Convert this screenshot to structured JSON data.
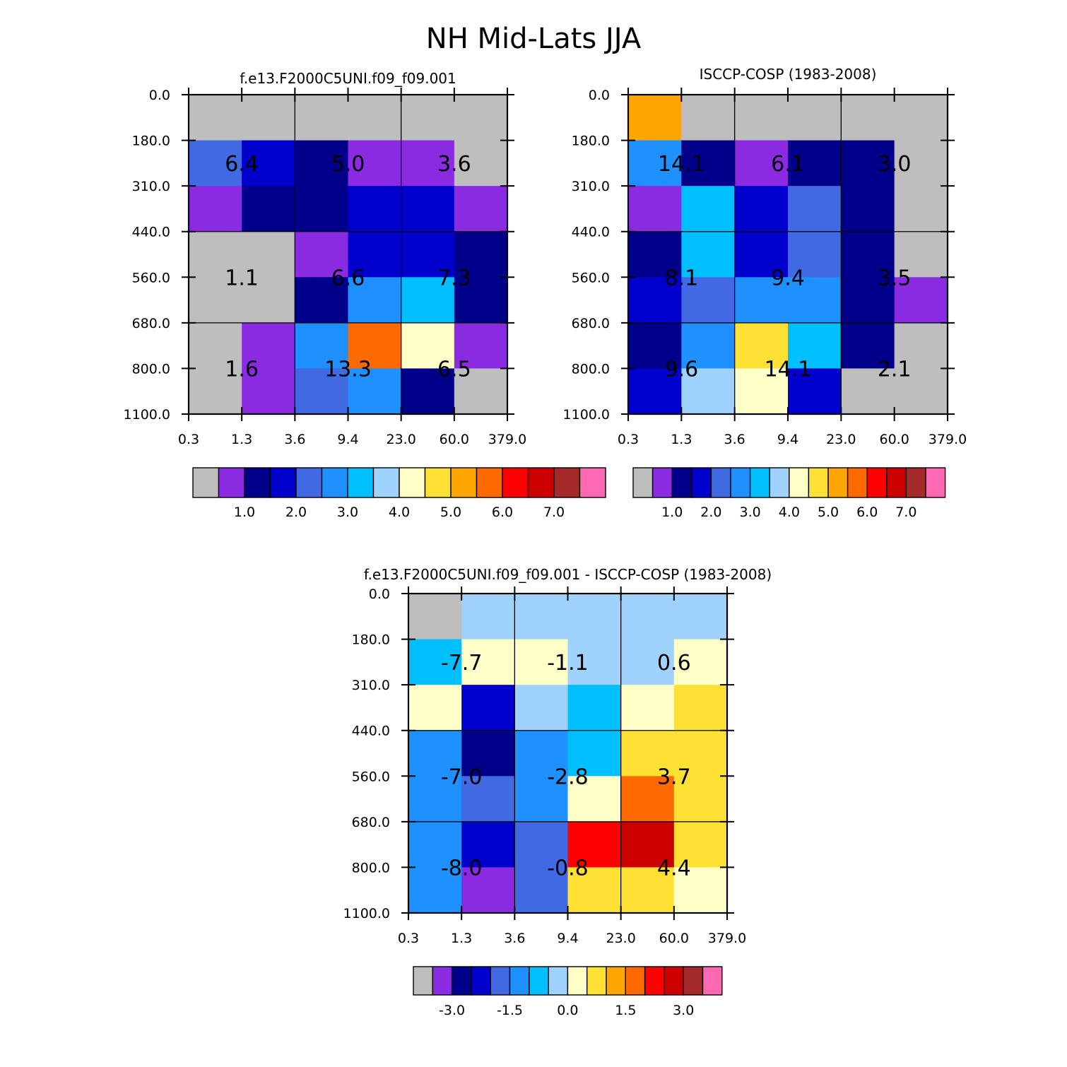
{
  "figure": {
    "title": "NH Mid-Lats JJA"
  },
  "chart_data": [
    {
      "type": "heatmap",
      "title": "f.e13.F2000C5UNI.f09_f09.001",
      "x_tick_labels": [
        "0.3",
        "1.3",
        "3.6",
        "9.4",
        "23.0",
        "60.0",
        "379.0"
      ],
      "y_tick_labels": [
        "0.0",
        "180.0",
        "310.0",
        "440.0",
        "560.0",
        "680.0",
        "800.0",
        "1100.0"
      ],
      "cell_colors": [
        [
          "#BEBEBE",
          "#BEBEBE",
          "#BEBEBE",
          "#BEBEBE",
          "#BEBEBE",
          "#BEBEBE"
        ],
        [
          "#4169E1",
          "#0000CD",
          "#00008B",
          "#8A2BE2",
          "#8A2BE2",
          "#BEBEBE"
        ],
        [
          "#8A2BE2",
          "#00008B",
          "#00008B",
          "#0000CD",
          "#0000CD",
          "#8A2BE2"
        ],
        [
          "#BEBEBE",
          "#BEBEBE",
          "#8A2BE2",
          "#0000CD",
          "#0000CD",
          "#00008B"
        ],
        [
          "#BEBEBE",
          "#BEBEBE",
          "#00008B",
          "#1E90FF",
          "#00BFFF",
          "#00008B"
        ],
        [
          "#BEBEBE",
          "#8A2BE2",
          "#1E90FF",
          "#FF6A00",
          "#FFFFC8",
          "#8A2BE2"
        ],
        [
          "#BEBEBE",
          "#8A2BE2",
          "#4169E1",
          "#1E90FF",
          "#00008B",
          "#BEBEBE"
        ]
      ],
      "group_values": [
        [
          "6.4",
          "5.0",
          "3.6"
        ],
        [
          "1.1",
          "6.6",
          "7.3"
        ],
        [
          "1.6",
          "13.3",
          "6.5"
        ]
      ],
      "colorbar": {
        "colors": [
          "#BEBEBE",
          "#8A2BE2",
          "#00008B",
          "#0000CD",
          "#4169E1",
          "#1E90FF",
          "#00BFFF",
          "#A0D2FF",
          "#FFFFC8",
          "#FFE135",
          "#FFA500",
          "#FF6A00",
          "#FF0000",
          "#CD0000",
          "#A52A2A",
          "#FF69B4"
        ],
        "labels": [
          "1.0",
          "2.0",
          "3.0",
          "4.0",
          "5.0",
          "6.0",
          "7.0"
        ]
      }
    },
    {
      "type": "heatmap",
      "title": "ISCCP-COSP (1983-2008)",
      "x_tick_labels": [
        "0.3",
        "1.3",
        "3.6",
        "9.4",
        "23.0",
        "60.0",
        "379.0"
      ],
      "y_tick_labels": [
        "0.0",
        "180.0",
        "310.0",
        "440.0",
        "560.0",
        "680.0",
        "800.0",
        "1100.0"
      ],
      "cell_colors": [
        [
          "#FFA500",
          "#BEBEBE",
          "#BEBEBE",
          "#BEBEBE",
          "#BEBEBE",
          "#BEBEBE"
        ],
        [
          "#1E90FF",
          "#00008B",
          "#8A2BE2",
          "#00008B",
          "#00008B",
          "#BEBEBE"
        ],
        [
          "#8A2BE2",
          "#00BFFF",
          "#0000CD",
          "#4169E1",
          "#00008B",
          "#BEBEBE"
        ],
        [
          "#00008B",
          "#00BFFF",
          "#0000CD",
          "#4169E1",
          "#00008B",
          "#BEBEBE"
        ],
        [
          "#0000CD",
          "#4169E1",
          "#1E90FF",
          "#1E90FF",
          "#00008B",
          "#8A2BE2"
        ],
        [
          "#00008B",
          "#1E90FF",
          "#FFE135",
          "#00BFFF",
          "#00008B",
          "#BEBEBE"
        ],
        [
          "#0000CD",
          "#A0D2FF",
          "#FFFFC8",
          "#0000CD",
          "#BEBEBE",
          "#BEBEBE"
        ]
      ],
      "group_values": [
        [
          "14.1",
          "6.1",
          "3.0"
        ],
        [
          "8.1",
          "9.4",
          "3.5"
        ],
        [
          "9.6",
          "14.1",
          "2.1"
        ]
      ],
      "colorbar": {
        "colors": [
          "#BEBEBE",
          "#8A2BE2",
          "#00008B",
          "#0000CD",
          "#4169E1",
          "#1E90FF",
          "#00BFFF",
          "#A0D2FF",
          "#FFFFC8",
          "#FFE135",
          "#FFA500",
          "#FF6A00",
          "#FF0000",
          "#CD0000",
          "#A52A2A",
          "#FF69B4"
        ],
        "labels": [
          "1.0",
          "2.0",
          "3.0",
          "4.0",
          "5.0",
          "6.0",
          "7.0"
        ]
      }
    },
    {
      "type": "heatmap",
      "title": "f.e13.F2000C5UNI.f09_f09.001 - ISCCP-COSP (1983-2008)",
      "x_tick_labels": [
        "0.3",
        "1.3",
        "3.6",
        "9.4",
        "23.0",
        "60.0",
        "379.0"
      ],
      "y_tick_labels": [
        "0.0",
        "180.0",
        "310.0",
        "440.0",
        "560.0",
        "680.0",
        "800.0",
        "1100.0"
      ],
      "cell_colors": [
        [
          "#BEBEBE",
          "#A0D2FF",
          "#A0D2FF",
          "#A0D2FF",
          "#A0D2FF",
          "#A0D2FF"
        ],
        [
          "#00BFFF",
          "#FFFFC8",
          "#FFFFC8",
          "#A0D2FF",
          "#A0D2FF",
          "#FFFFC8"
        ],
        [
          "#FFFFC8",
          "#0000CD",
          "#A0D2FF",
          "#00BFFF",
          "#FFFFC8",
          "#FFE135"
        ],
        [
          "#1E90FF",
          "#00008B",
          "#1E90FF",
          "#00BFFF",
          "#FFE135",
          "#FFE135"
        ],
        [
          "#1E90FF",
          "#4169E1",
          "#1E90FF",
          "#FFFFC8",
          "#FF6A00",
          "#FFE135"
        ],
        [
          "#1E90FF",
          "#0000CD",
          "#4169E1",
          "#FF0000",
          "#CD0000",
          "#FFE135"
        ],
        [
          "#1E90FF",
          "#8A2BE2",
          "#4169E1",
          "#FFE135",
          "#FFE135",
          "#FFFFC8"
        ]
      ],
      "group_values": [
        [
          "-7.7",
          "-1.1",
          "0.6"
        ],
        [
          "-7.0",
          "-2.8",
          "3.7"
        ],
        [
          "-8.0",
          "-0.8",
          "4.4"
        ]
      ],
      "colorbar": {
        "colors": [
          "#BEBEBE",
          "#8A2BE2",
          "#00008B",
          "#0000CD",
          "#4169E1",
          "#1E90FF",
          "#00BFFF",
          "#A0D2FF",
          "#FFFFC8",
          "#FFE135",
          "#FFA500",
          "#FF6A00",
          "#FF0000",
          "#CD0000",
          "#A52A2A",
          "#FF69B4"
        ],
        "labels": [
          "-3.0",
          "-1.5",
          "0.0",
          "1.5",
          "3.0"
        ]
      }
    }
  ]
}
